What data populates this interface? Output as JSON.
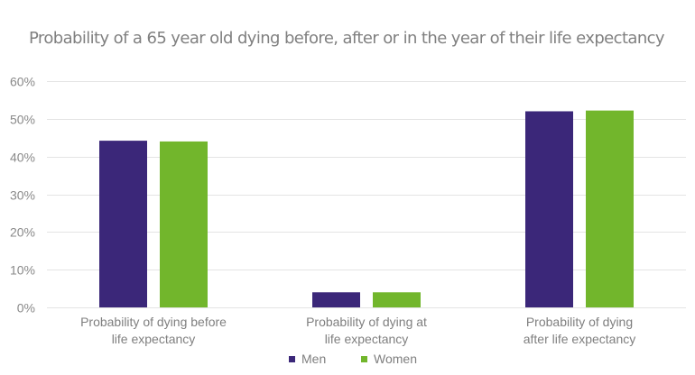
{
  "chart_data": {
    "type": "bar",
    "title": "Probability of a 65 year old dying before, after or in the year of their life expectancy",
    "xlabel": "",
    "ylabel": "",
    "ylim": [
      0,
      60
    ],
    "yticks": [
      "0%",
      "10%",
      "20%",
      "30%",
      "40%",
      "50%",
      "60%"
    ],
    "ytick_values": [
      0,
      10,
      20,
      30,
      40,
      50,
      60
    ],
    "grid": true,
    "legend_position": "bottom",
    "categories": [
      [
        "Probability of dying before",
        "life expectancy"
      ],
      [
        "Probability of dying at",
        "life expectancy"
      ],
      [
        "Probability of dying",
        "after life expectancy"
      ]
    ],
    "series": [
      {
        "name": "Men",
        "color": "#3b2779",
        "values": [
          44.2,
          4.0,
          52.0
        ]
      },
      {
        "name": "Women",
        "color": "#72b62c",
        "values": [
          44.0,
          4.0,
          52.2
        ]
      }
    ]
  }
}
